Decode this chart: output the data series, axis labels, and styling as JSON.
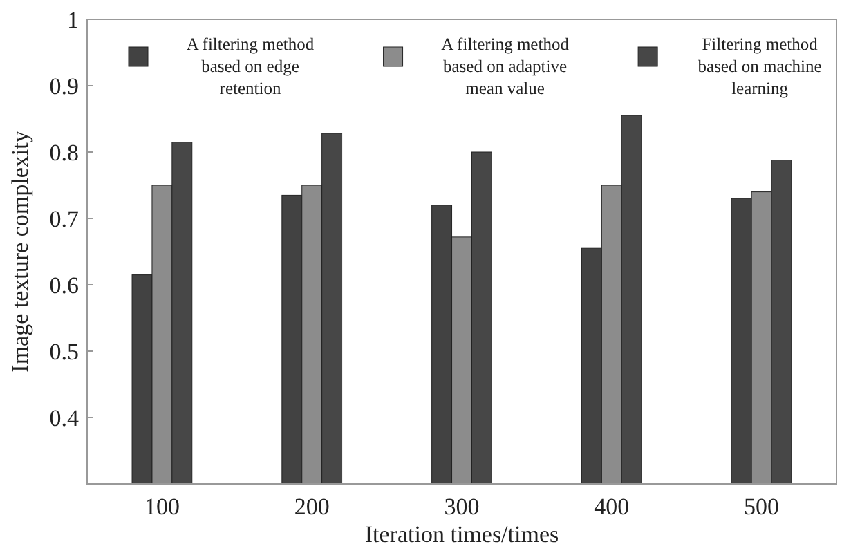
{
  "chart_data": {
    "type": "bar",
    "xlabel": "Iteration times/times",
    "ylabel": "Image texture complexity",
    "categories": [
      "100",
      "200",
      "300",
      "400",
      "500"
    ],
    "series": [
      {
        "name": "A filtering method based on edge retention",
        "color": "#424242",
        "values": [
          0.615,
          0.735,
          0.72,
          0.655,
          0.73
        ]
      },
      {
        "name": "A filtering method based on adaptive mean value",
        "color": "#8c8c8c",
        "values": [
          0.75,
          0.75,
          0.672,
          0.75,
          0.74
        ]
      },
      {
        "name": "Filtering method based on machine learning",
        "color": "#474747",
        "values": [
          0.815,
          0.828,
          0.8,
          0.855,
          0.788
        ]
      }
    ],
    "ylim": [
      0.3,
      1
    ],
    "yticks": [
      0.4,
      0.5,
      0.6,
      0.7,
      0.8,
      0.9,
      1
    ],
    "legend": "top",
    "grid": false
  }
}
